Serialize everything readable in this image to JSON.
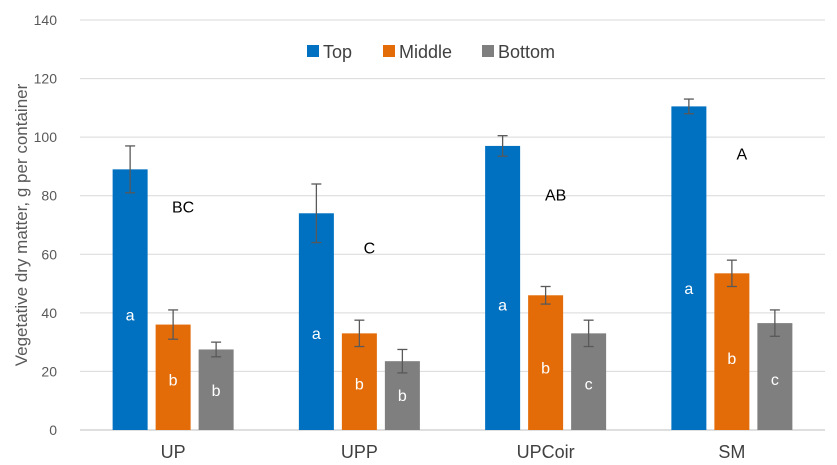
{
  "chart_data": {
    "type": "bar",
    "title": "",
    "xlabel": "",
    "ylabel": "Vegetative dry matter, g per container",
    "ylim": [
      0,
      140
    ],
    "yticks": [
      0,
      20,
      40,
      60,
      80,
      100,
      120,
      140
    ],
    "grid": true,
    "legend_position": "top",
    "categories": [
      "UP",
      "UPP",
      "UPCoir",
      "SM"
    ],
    "series": [
      {
        "name": "Top",
        "color": "#0070C0",
        "values": [
          89,
          74,
          97,
          110.5
        ],
        "errors": [
          8,
          10,
          3.5,
          2.5
        ],
        "labels": [
          "a",
          "a",
          "a",
          "a"
        ]
      },
      {
        "name": "Middle",
        "color": "#E36C09",
        "values": [
          36,
          33,
          46,
          53.5
        ],
        "errors": [
          5,
          4.5,
          3,
          4.5
        ],
        "labels": [
          "b",
          "b",
          "b",
          "b"
        ]
      },
      {
        "name": "Bottom",
        "color": "#7F7F7F",
        "values": [
          27.5,
          23.5,
          33,
          36.5
        ],
        "errors": [
          2.5,
          4,
          4.5,
          4.5
        ],
        "labels": [
          "b",
          "b",
          "c",
          "c"
        ]
      }
    ],
    "group_letters": [
      {
        "category": "UP",
        "text": "BC",
        "y": 76
      },
      {
        "category": "UPP",
        "text": "C",
        "y": 62
      },
      {
        "category": "UPCoir",
        "text": "AB",
        "y": 80
      },
      {
        "category": "SM",
        "text": "A",
        "y": 94
      }
    ]
  }
}
